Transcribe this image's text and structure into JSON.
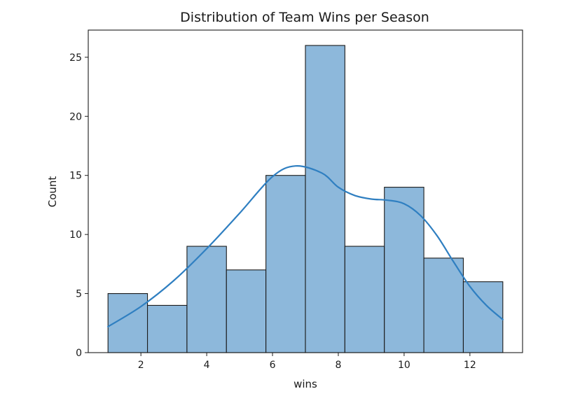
{
  "chart_data": {
    "type": "bar",
    "title": "Distribution of Team Wins per Season",
    "xlabel": "wins",
    "ylabel": "Count",
    "bins": [
      {
        "start": 1.0,
        "end": 2.2,
        "count": 5
      },
      {
        "start": 2.2,
        "end": 3.4,
        "count": 4
      },
      {
        "start": 3.4,
        "end": 4.6,
        "count": 9
      },
      {
        "start": 4.6,
        "end": 5.8,
        "count": 7
      },
      {
        "start": 5.8,
        "end": 7.0,
        "count": 15
      },
      {
        "start": 7.0,
        "end": 8.2,
        "count": 26
      },
      {
        "start": 8.2,
        "end": 9.4,
        "count": 9
      },
      {
        "start": 9.4,
        "end": 10.6,
        "count": 14
      },
      {
        "start": 10.6,
        "end": 11.8,
        "count": 8
      },
      {
        "start": 11.8,
        "end": 13.0,
        "count": 6
      }
    ],
    "kde": {
      "x": [
        1.0,
        2.0,
        3.0,
        4.0,
        5.0,
        6.0,
        6.7,
        7.5,
        8.0,
        8.5,
        9.0,
        9.5,
        10.0,
        10.5,
        11.0,
        11.5,
        12.0,
        12.5,
        13.0
      ],
      "y": [
        2.2,
        3.9,
        6.1,
        8.8,
        11.8,
        14.9,
        15.8,
        15.2,
        14.0,
        13.3,
        13.0,
        12.9,
        12.6,
        11.6,
        9.9,
        7.7,
        5.6,
        4.0,
        2.8
      ]
    },
    "xticks": [
      2,
      4,
      6,
      8,
      10,
      12
    ],
    "yticks": [
      0,
      5,
      10,
      15,
      20,
      25
    ],
    "xlim": [
      0.4,
      13.6
    ],
    "ylim": [
      0,
      27.3
    ],
    "grid": false,
    "colors": {
      "bar_fill": "#8db8db",
      "bar_edge": "#1b1b1b",
      "kde_line": "#2f7fc1"
    }
  }
}
